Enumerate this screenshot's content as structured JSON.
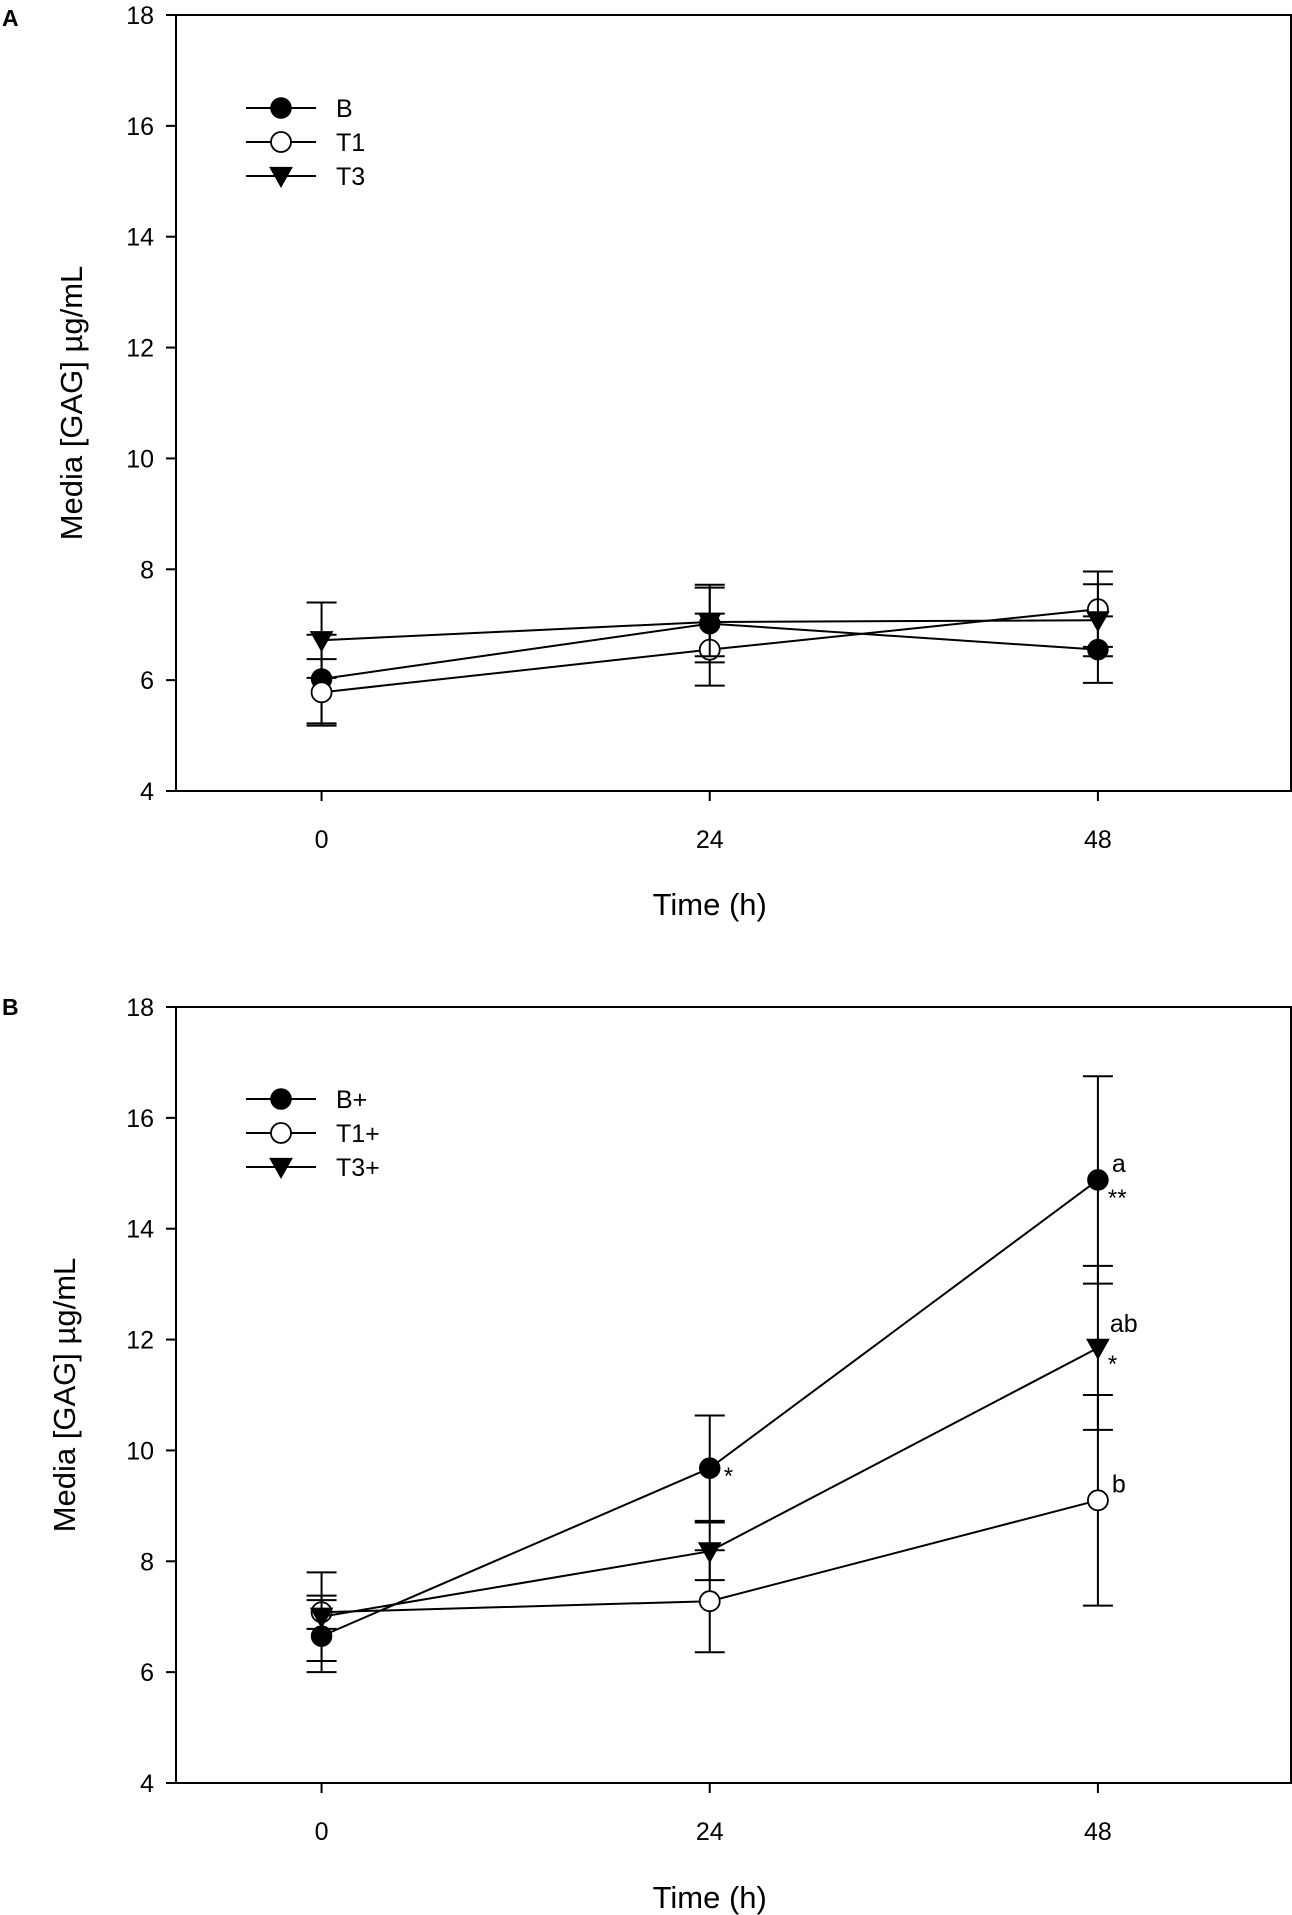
{
  "figure": {
    "panels": [
      "A",
      "B"
    ]
  },
  "chart_data": [
    {
      "panel_label": "A",
      "type": "line",
      "title": "",
      "xlabel": "Time (h)",
      "ylabel": "Media [GAG] µg/mL",
      "x": [
        0,
        24,
        48
      ],
      "x_ticks": [
        "0",
        "24",
        "48"
      ],
      "xlim": [
        -9,
        60
      ],
      "ylim": [
        4,
        18
      ],
      "y_ticks": [
        "4",
        "6",
        "8",
        "10",
        "12",
        "14",
        "16",
        "18"
      ],
      "legend_position": "top-left",
      "series": [
        {
          "name": "B",
          "marker": "filled-circle",
          "values": [
            6.02,
            7.02,
            6.55
          ],
          "error": [
            0.8,
            0.7,
            0.6
          ]
        },
        {
          "name": "T1",
          "marker": "open-circle",
          "values": [
            5.78,
            6.55,
            7.28
          ],
          "error": [
            0.6,
            0.65,
            0.68
          ]
        },
        {
          "name": "T3",
          "marker": "filled-triangle-down",
          "values": [
            6.72,
            7.05,
            7.08
          ],
          "error": [
            0.68,
            0.62,
            0.65
          ]
        }
      ],
      "annotations": []
    },
    {
      "panel_label": "B",
      "type": "line",
      "title": "",
      "xlabel": "Time (h)",
      "ylabel": "Media [GAG] µg/mL",
      "x": [
        0,
        24,
        48
      ],
      "x_ticks": [
        "0",
        "24",
        "48"
      ],
      "xlim": [
        -9,
        60
      ],
      "ylim": [
        4,
        18
      ],
      "y_ticks": [
        "4",
        "6",
        "8",
        "10",
        "12",
        "14",
        "16",
        "18"
      ],
      "legend_position": "top-left",
      "series": [
        {
          "name": "B+",
          "marker": "filled-circle",
          "values": [
            6.65,
            9.68,
            14.88
          ],
          "error": [
            0.65,
            0.95,
            1.87
          ]
        },
        {
          "name": "T1+",
          "marker": "open-circle",
          "values": [
            7.08,
            7.28,
            9.1
          ],
          "error": [
            0.3,
            0.92,
            1.9
          ]
        },
        {
          "name": "T3+",
          "marker": "filled-triangle-down",
          "values": [
            7.0,
            8.18,
            11.85
          ],
          "error": [
            0.8,
            0.52,
            1.48
          ]
        }
      ],
      "annotations": [
        {
          "series": "B+",
          "x": 24,
          "text": "*",
          "role": "star"
        },
        {
          "series": "B+",
          "x": 48,
          "text": "a",
          "role": "letter"
        },
        {
          "series": "B+",
          "x": 48,
          "text": "**",
          "role": "star"
        },
        {
          "series": "T3+",
          "x": 48,
          "text": "ab",
          "role": "letter"
        },
        {
          "series": "T3+",
          "x": 48,
          "text": "*",
          "role": "star"
        },
        {
          "series": "T1+",
          "x": 48,
          "text": "b",
          "role": "letter"
        }
      ]
    }
  ]
}
